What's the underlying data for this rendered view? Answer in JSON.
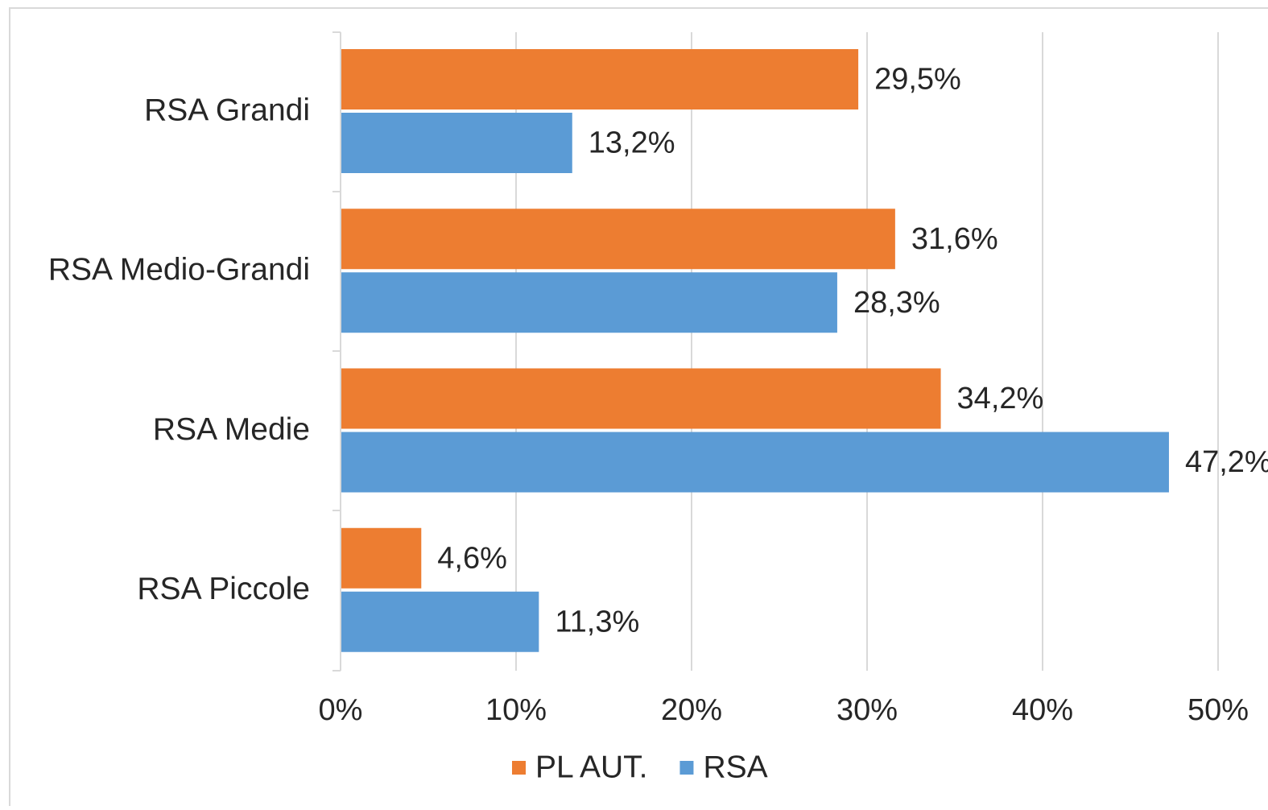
{
  "chart_data": {
    "type": "hbar",
    "categories": [
      "RSA Grandi",
      "RSA Medio-Grandi",
      "RSA Medie",
      "RSA Piccole"
    ],
    "series": [
      {
        "name": "PL AUT.",
        "color": "#ed7d31",
        "values": [
          29.5,
          31.6,
          34.2,
          4.6
        ],
        "value_labels": [
          "29,5%",
          "31,6%",
          "34,2%",
          "4,6%"
        ]
      },
      {
        "name": "RSA",
        "color": "#5b9bd5",
        "values": [
          13.2,
          28.3,
          47.2,
          11.3
        ],
        "value_labels": [
          "13,2%",
          "28,3%",
          "47,2%",
          "11,3%"
        ]
      }
    ],
    "xlim": [
      0,
      50
    ],
    "xticks": [
      {
        "value": 0,
        "label": "0%"
      },
      {
        "value": 10,
        "label": "10%"
      },
      {
        "value": 20,
        "label": "20%"
      },
      {
        "value": 30,
        "label": "30%"
      },
      {
        "value": 40,
        "label": "40%"
      },
      {
        "value": 50,
        "label": "50%"
      }
    ],
    "grid": true,
    "legend": "bottom"
  }
}
